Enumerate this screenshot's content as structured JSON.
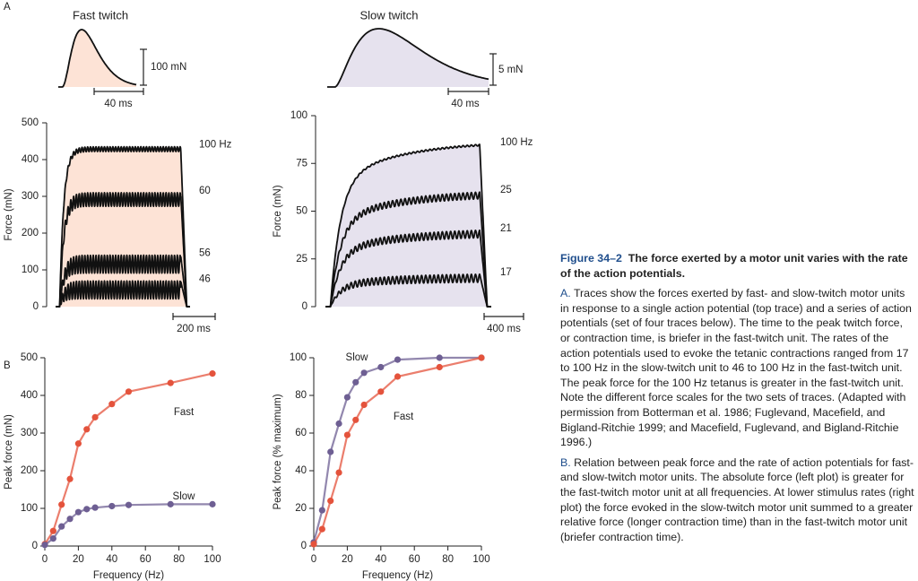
{
  "panel_labels": [
    "A",
    "B"
  ],
  "twitch": [
    {
      "title": "Fast twitch",
      "force_scale": "100 mN",
      "time_scale": "40 ms"
    },
    {
      "title": "Slow twitch",
      "force_scale": "5 mN",
      "time_scale": "40 ms"
    }
  ],
  "tetanus": [
    {
      "y_label": "Force (mN)",
      "ylim": [
        0,
        500
      ],
      "yticks": [
        0,
        100,
        200,
        300,
        400,
        500
      ],
      "time_scale": "200 ms",
      "traces": [
        {
          "label": "100 Hz",
          "peak": 435
        },
        {
          "label": "60",
          "peak": 310
        },
        {
          "label": "56",
          "peak": 140
        },
        {
          "label": "46",
          "peak": 70
        }
      ]
    },
    {
      "y_label": "Force (mN)",
      "ylim": [
        0,
        100
      ],
      "yticks": [
        0,
        25,
        50,
        75,
        100
      ],
      "time_scale": "400 ms",
      "traces": [
        {
          "label": "100 Hz",
          "peak": 85
        },
        {
          "label": "25",
          "peak": 60
        },
        {
          "label": "21",
          "peak": 40
        },
        {
          "label": "17",
          "peak": 17
        }
      ]
    }
  ],
  "chart_data": [
    {
      "type": "line",
      "x_label": "Frequency (Hz)",
      "y_label": "Peak force (mN)",
      "xlim": [
        0,
        100
      ],
      "xticks": [
        0,
        20,
        40,
        60,
        80,
        100
      ],
      "ylim": [
        0,
        500
      ],
      "yticks": [
        0,
        100,
        200,
        300,
        400,
        500
      ],
      "x": [
        0,
        5,
        10,
        15,
        20,
        25,
        30,
        40,
        50,
        75,
        100
      ],
      "series": [
        {
          "name": "Fast",
          "color": "#e4533c",
          "values": [
            5,
            40,
            110,
            178,
            272,
            310,
            342,
            377,
            410,
            433,
            458
          ]
        },
        {
          "name": "Slow",
          "color": "#6e5f93",
          "values": [
            3,
            20,
            52,
            72,
            90,
            98,
            102,
            106,
            109,
            111,
            111
          ]
        }
      ]
    },
    {
      "type": "line",
      "x_label": "Frequency (Hz)",
      "y_label": "Peak force (% maximum)",
      "xlim": [
        0,
        100
      ],
      "xticks": [
        0,
        20,
        40,
        60,
        80,
        100
      ],
      "ylim": [
        0,
        100
      ],
      "yticks": [
        0,
        20,
        40,
        60,
        80,
        100
      ],
      "x": [
        0,
        5,
        10,
        15,
        20,
        25,
        30,
        40,
        50,
        75,
        100
      ],
      "series": [
        {
          "name": "Slow",
          "color": "#6e5f93",
          "values": [
            2,
            19,
            50,
            65,
            79,
            87,
            92,
            95,
            99,
            100,
            100
          ]
        },
        {
          "name": "Fast",
          "color": "#e4533c",
          "values": [
            1,
            9,
            24,
            39,
            59,
            67,
            75,
            82,
            90,
            95,
            100
          ]
        }
      ]
    }
  ],
  "caption": {
    "figure_number": "Figure 34–2",
    "title": "The force exerted by a motor unit varies with the rate of the action potentials.",
    "paragraphs": [
      {
        "label": "A.",
        "text": "Traces show the forces exerted by fast- and slow-twitch motor units in response to a single action potential (top trace) and a series of action potentials (set of four traces below). The time to the peak twitch force, or contraction time, is briefer in the fast-twitch unit. The rates of the action potentials used to evoke the tetanic contractions ranged from 17 to 100 Hz in the slow-twitch unit to 46 to 100 Hz in the fast-twitch unit. The peak force for the 100 Hz tetanus is greater in the fast-twitch unit. Note the different force scales for the two sets of traces. (Adapted with permission from Botterman et al. 1986; Fuglevand, Macefield, and Bigland-Ritchie 1999; and Macefield, Fuglevand, and Bigland-Ritchie 1996.)"
      },
      {
        "label": "B.",
        "text": "Relation between peak force and the rate of action potentials for fast- and slow-twitch motor units. The absolute force (left plot) is greater for the fast-twitch motor unit at all frequencies. At lower stimulus rates (right plot) the force evoked in the slow-twitch motor unit summed to a greater relative force (longer contraction time) than in the fast-twitch motor unit (briefer contraction time)."
      }
    ]
  }
}
